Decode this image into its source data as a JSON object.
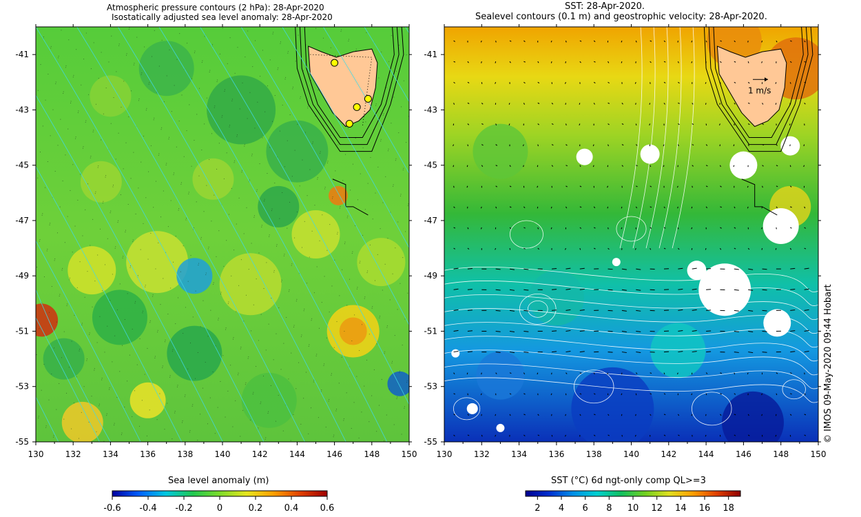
{
  "left_panel": {
    "title_line1": "Atmospheric pressure contours (2 hPa): 28-Apr-2020",
    "title_line2": "Isostatically adjusted sea level anomaly: 28-Apr-2020",
    "colorbar_label": "Sea level anomaly (m)",
    "colorbar_ticks": [
      "-0.6",
      "-0.4",
      "-0.2",
      "0",
      "0.2",
      "0.4",
      "0.6"
    ],
    "colorbar_range": [
      -0.6,
      0.6
    ],
    "colorbar_colors": [
      "#0000a0",
      "#0060ff",
      "#00c8e0",
      "#20c850",
      "#7ddc2a",
      "#e6e61e",
      "#ffa000",
      "#e04000",
      "#a00000"
    ]
  },
  "right_panel": {
    "title_line1": "SST: 28-Apr-2020.",
    "title_line2": "Sealevel contours (0.1 m) and geostrophic velocity: 28-Apr-2020.",
    "velocity_scale_label": "1 m/s",
    "colorbar_label": "SST (°C) 6d ngt-only comp QL>=3",
    "colorbar_ticks": [
      "2",
      "4",
      "6",
      "8",
      "10",
      "12",
      "14",
      "16",
      "18"
    ],
    "colorbar_range": [
      1,
      19
    ],
    "colorbar_colors": [
      "#000090",
      "#0030d0",
      "#0090e8",
      "#00d0d0",
      "#10c060",
      "#70d020",
      "#e0e020",
      "#ffa000",
      "#e04000",
      "#900000"
    ],
    "credit": "©  IMOS 09-May-2020 09:44 Hobart"
  },
  "axes": {
    "lon_ticks": [
      "130",
      "132",
      "134",
      "136",
      "138",
      "140",
      "142",
      "144",
      "146",
      "148",
      "150"
    ],
    "lat_ticks": [
      "-41",
      "-43",
      "-45",
      "-47",
      "-49",
      "-51",
      "-53",
      "-55"
    ],
    "lon_range": [
      130,
      150
    ],
    "lat_range": [
      -55,
      -40
    ]
  },
  "land_color": "#ffc896",
  "tide_gauges": [
    {
      "lon": 146.0,
      "lat": -41.3
    },
    {
      "lon": 147.2,
      "lat": -42.9
    },
    {
      "lon": 147.8,
      "lat": -42.6
    },
    {
      "lon": 146.8,
      "lat": -43.5
    }
  ]
}
